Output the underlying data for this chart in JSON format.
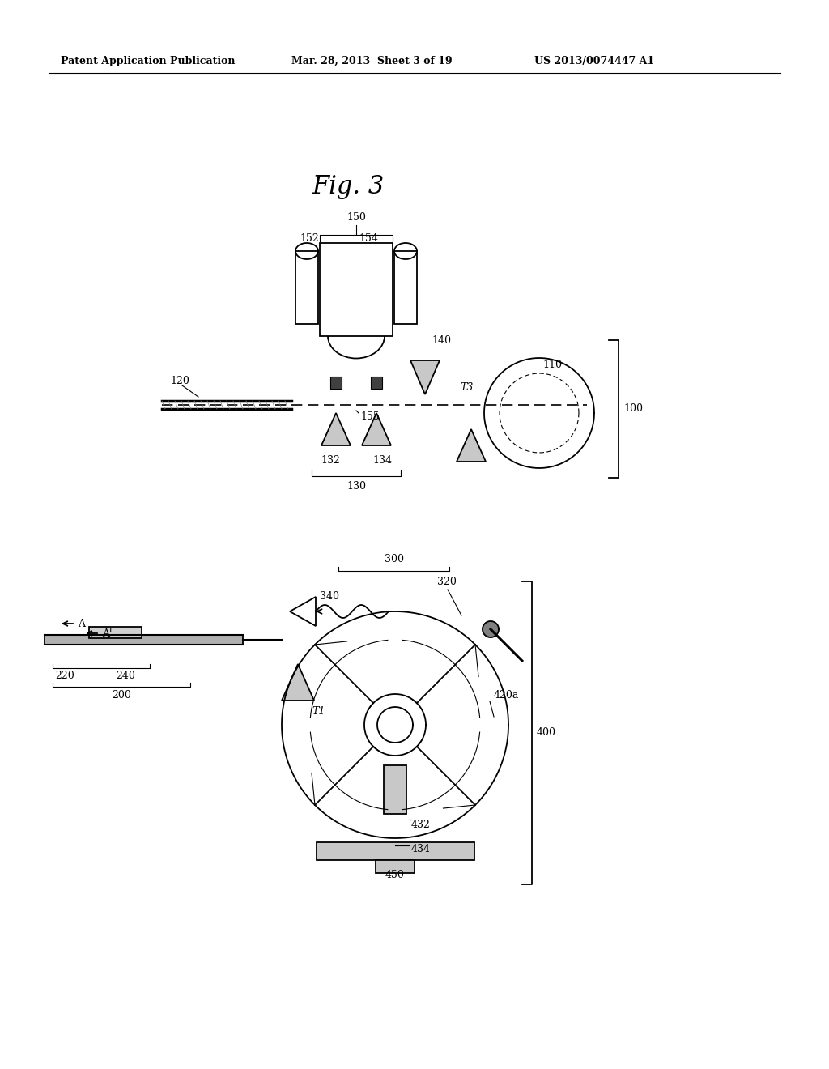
{
  "bg_color": "#ffffff",
  "title": "Fig. 3",
  "header_left": "Patent Application Publication",
  "header_mid": "Mar. 28, 2013  Sheet 3 of 19",
  "header_right": "US 2013/0074447 A1",
  "fig_width": 10.24,
  "fig_height": 13.2
}
